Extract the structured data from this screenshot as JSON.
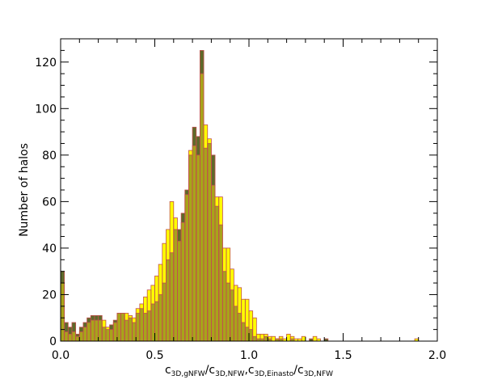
{
  "chart_data": {
    "type": "bar",
    "title": "",
    "ylabel": "Number of halos",
    "xlabel_parts": [
      "c",
      "3D,gNFW",
      "/c",
      "3D,NFW",
      ",c",
      "3D,Einasto",
      "/c",
      "3D,NFW"
    ],
    "xlim": [
      0.0,
      2.0
    ],
    "ylim": [
      0,
      130
    ],
    "bin_width": 0.02,
    "x_ticks": [
      0.0,
      0.5,
      1.0,
      1.5,
      2.0
    ],
    "x_tick_labels": [
      "0.0",
      "0.5",
      "1.0",
      "1.5",
      "2.0"
    ],
    "y_ticks": [
      0,
      20,
      40,
      60,
      80,
      100,
      120
    ],
    "y_tick_labels": [
      "0",
      "20",
      "40",
      "60",
      "80",
      "100",
      "120"
    ],
    "grid": false,
    "legend": "none",
    "series": [
      {
        "color": "#5e6a2a",
        "x": [
          0.0,
          0.02,
          0.04,
          0.06,
          0.08,
          0.1,
          0.12,
          0.14,
          0.16,
          0.18,
          0.2,
          0.22,
          0.24,
          0.26,
          0.28,
          0.3,
          0.32,
          0.34,
          0.36,
          0.38,
          0.4,
          0.42,
          0.44,
          0.46,
          0.48,
          0.5,
          0.52,
          0.54,
          0.56,
          0.58,
          0.6,
          0.62,
          0.64,
          0.66,
          0.68,
          0.7,
          0.72,
          0.74,
          0.76,
          0.78,
          0.8,
          0.82,
          0.84,
          0.86,
          0.88,
          0.9,
          0.92,
          0.94,
          0.96,
          0.98,
          1.0,
          1.02,
          1.04,
          1.06,
          1.08,
          1.1,
          1.12,
          1.14,
          1.16,
          1.18,
          1.2,
          1.22,
          1.24,
          1.26,
          1.28,
          1.3,
          1.32,
          1.34,
          1.36,
          1.38,
          1.4,
          1.42,
          1.44,
          1.46,
          1.48,
          1.5,
          1.52,
          1.54,
          1.56,
          1.58,
          1.6,
          1.62,
          1.64,
          1.66,
          1.68,
          1.7,
          1.72,
          1.74,
          1.76,
          1.78,
          1.8,
          1.82,
          1.84,
          1.86,
          1.88
        ],
        "values": [
          30,
          8,
          6,
          8,
          3,
          6,
          8,
          10,
          11,
          11,
          11,
          6,
          5,
          7,
          9,
          12,
          12,
          9,
          10,
          8,
          12,
          14,
          12,
          13,
          16,
          17,
          20,
          25,
          35,
          38,
          48,
          48,
          55,
          65,
          80,
          92,
          88,
          125,
          83,
          85,
          80,
          58,
          50,
          30,
          25,
          22,
          15,
          12,
          8,
          6,
          5,
          2,
          1,
          1,
          2,
          1,
          0,
          1,
          1,
          0,
          0,
          1,
          0,
          0,
          0,
          0,
          1,
          0,
          0,
          0,
          1,
          0,
          0,
          0,
          0,
          0,
          0,
          0,
          0,
          0,
          0,
          0,
          0,
          0,
          0,
          0,
          0,
          0,
          0,
          0,
          0,
          0,
          0,
          0,
          0
        ]
      },
      {
        "color": "#ffff00",
        "x": [
          0.0,
          0.02,
          0.04,
          0.06,
          0.08,
          0.1,
          0.12,
          0.14,
          0.16,
          0.18,
          0.2,
          0.22,
          0.24,
          0.26,
          0.28,
          0.3,
          0.32,
          0.34,
          0.36,
          0.38,
          0.4,
          0.42,
          0.44,
          0.46,
          0.48,
          0.5,
          0.52,
          0.54,
          0.56,
          0.58,
          0.6,
          0.62,
          0.64,
          0.66,
          0.68,
          0.7,
          0.72,
          0.74,
          0.76,
          0.78,
          0.8,
          0.82,
          0.84,
          0.86,
          0.88,
          0.9,
          0.92,
          0.94,
          0.96,
          0.98,
          1.0,
          1.02,
          1.04,
          1.06,
          1.08,
          1.1,
          1.12,
          1.14,
          1.16,
          1.18,
          1.2,
          1.22,
          1.24,
          1.26,
          1.28,
          1.3,
          1.32,
          1.34,
          1.36,
          1.38,
          1.4,
          1.42,
          1.44,
          1.46,
          1.48,
          1.5,
          1.52,
          1.54,
          1.56,
          1.58,
          1.6,
          1.62,
          1.64,
          1.66,
          1.68,
          1.7,
          1.72,
          1.74,
          1.76,
          1.78,
          1.8,
          1.82,
          1.84,
          1.86,
          1.88
        ],
        "values": [
          25,
          4,
          3,
          4,
          2,
          4,
          6,
          8,
          9,
          9,
          9,
          9,
          6,
          5,
          8,
          12,
          12,
          12,
          11,
          10,
          14,
          16,
          19,
          22,
          24,
          28,
          33,
          42,
          48,
          60,
          53,
          43,
          51,
          63,
          82,
          84,
          80,
          115,
          93,
          87,
          67,
          62,
          62,
          40,
          40,
          31,
          24,
          23,
          18,
          18,
          13,
          10,
          3,
          3,
          3,
          2,
          2,
          1,
          2,
          1,
          3,
          2,
          1,
          1,
          2,
          0,
          0,
          2,
          1,
          0,
          0,
          0,
          0,
          0,
          0,
          0,
          0,
          0,
          0,
          0,
          0,
          0,
          0,
          0,
          0,
          0,
          0,
          0,
          0,
          0,
          0,
          0,
          0,
          0,
          1
        ]
      }
    ]
  }
}
